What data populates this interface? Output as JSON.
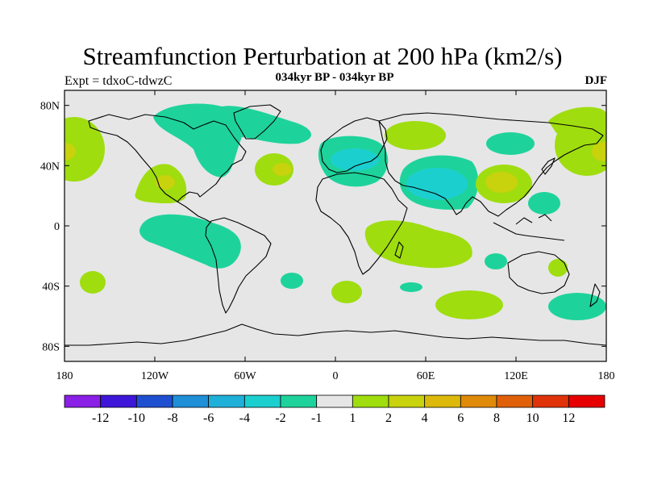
{
  "title": "Streamfunction Perturbation at 200 hPa (km2/s)",
  "left_label": "Expt = tdxoC-tdwzC",
  "center_label": "034kyr BP - 034kyr BP",
  "right_label": "DJF",
  "map": {
    "projection": "cylindrical-equidistant",
    "background": "#e6e6e6",
    "lon_range": [
      -180,
      180
    ],
    "lat_range": [
      -90,
      90
    ],
    "x_ticks": [
      "180",
      "120W",
      "60W",
      "0",
      "60E",
      "120E",
      "180"
    ],
    "y_ticks": [
      "80N",
      "40N",
      "0",
      "40S",
      "80S"
    ]
  },
  "colorbar": {
    "labels": [
      "-12",
      "-10",
      "-8",
      "-6",
      "-4",
      "-2",
      "-1",
      "1",
      "2",
      "4",
      "6",
      "8",
      "10",
      "12"
    ],
    "colors": [
      "#8a1fe6",
      "#3d16d9",
      "#1f4fd1",
      "#1f8fd8",
      "#1fb0d9",
      "#1ccfcf",
      "#1ed39b",
      "#e6e6e6",
      "#9fdd0f",
      "#c8d20d",
      "#dcb90b",
      "#e08a0a",
      "#e0600a",
      "#e0330a",
      "#e60000"
    ]
  }
}
